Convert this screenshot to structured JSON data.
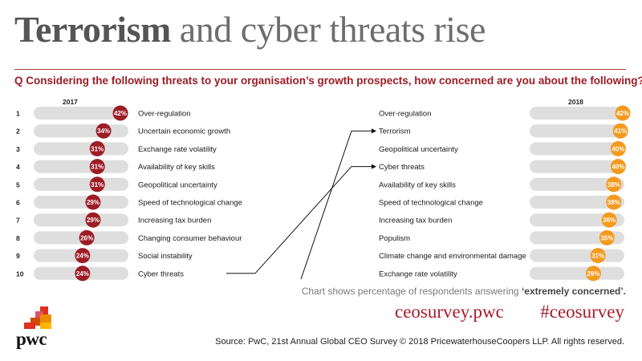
{
  "title_bold": "Terrorism",
  "title_rest": " and cyber threats rise",
  "question": "Q Considering the following threats to your organisation’s growth prospects, how concerned are you about the following?",
  "note_prefix": "Chart shows percentage of respondents answering ",
  "note_bold": "‘extremely concerned’.",
  "url": "ceosurvey.pwc",
  "hashtag": "#ceosurvey",
  "source": "Source: PwC, 21st Annual Global CEO Survey © 2018 PricewaterhouseCoopers LLP. All rights reserved.",
  "logo_text": "pwc",
  "colors": {
    "red": "#9c1d26",
    "orange": "#f39a1f",
    "bar": "#dedede",
    "brand": "#a51d2d"
  },
  "chart_data": [
    {
      "type": "bar",
      "series_label": "2017",
      "ranks": [
        "1",
        "2",
        "3",
        "4",
        "5",
        "6",
        "7",
        "8",
        "9",
        "10"
      ],
      "categories": [
        "Over-regulation",
        "Uncertain economic growth",
        "Exchange rate volatility",
        "Availability of key skills",
        "Geopolitical uncertainty",
        "Speed of technological change",
        "Increasing tax burden",
        "Changing consumer behaviour",
        "Social instability",
        "Cyber threats"
      ],
      "values": [
        42,
        34,
        31,
        31,
        31,
        29,
        29,
        26,
        24,
        24
      ],
      "value_labels": [
        "42%",
        "34%",
        "31%",
        "31%",
        "31%",
        "29%",
        "29%",
        "26%",
        "24%",
        "24%"
      ]
    },
    {
      "type": "bar",
      "series_label": "2018",
      "categories": [
        "Over-regulation",
        "Terrorism",
        "Geopolitical uncertainty",
        "Cyber threats",
        "Availability of key skills",
        "Speed of technological change",
        "Increasing tax burden",
        "Populism",
        "Climate change and environmental damage",
        "Exchange rate volatility"
      ],
      "values": [
        42,
        41,
        40,
        40,
        38,
        38,
        36,
        35,
        31,
        29
      ],
      "value_labels": [
        "42%",
        "41%",
        "40%",
        "40%",
        "38%",
        "38%",
        "36%",
        "35%",
        "31%",
        "29%"
      ]
    }
  ]
}
